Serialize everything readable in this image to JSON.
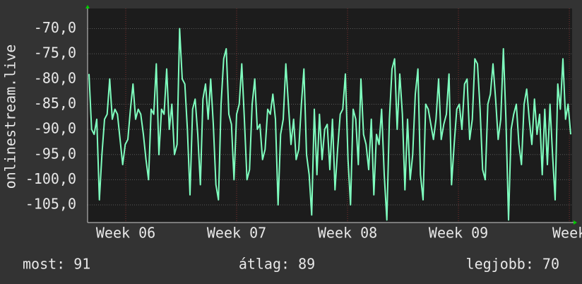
{
  "chart_data": {
    "type": "line",
    "ylabel": "onlinestream.live",
    "ylim": [
      -108.5,
      -66
    ],
    "yticks": [
      {
        "value": -70,
        "label": "-70,0"
      },
      {
        "value": -75,
        "label": "-75,0"
      },
      {
        "value": -80,
        "label": "-80,0"
      },
      {
        "value": -85,
        "label": "-85,0"
      },
      {
        "value": -90,
        "label": "-90,0"
      },
      {
        "value": -95,
        "label": "-95,0"
      },
      {
        "value": -100,
        "label": "-100,0"
      },
      {
        "value": -105,
        "label": "-105,0"
      }
    ],
    "xlim": [
      5.656,
      10.025
    ],
    "xticks": [
      {
        "value": 6,
        "label": "Week 06"
      },
      {
        "value": 7,
        "label": "Week 07"
      },
      {
        "value": 8,
        "label": "Week 08"
      },
      {
        "value": 9,
        "label": "Week 09"
      },
      {
        "value": 10,
        "label": "Week"
      }
    ],
    "grid": true,
    "series": [
      {
        "color": "#7fffbf",
        "values": [
          -79,
          -90,
          -91,
          -88,
          -104,
          -95,
          -88,
          -87,
          -80,
          -88,
          -86,
          -87,
          -92,
          -97,
          -93,
          -92,
          -86,
          -81,
          -88,
          -86,
          -87,
          -91,
          -96,
          -100,
          -86,
          -87,
          -77,
          -95,
          -86,
          -87,
          -78,
          -90,
          -85,
          -95,
          -93,
          -70,
          -80,
          -81,
          -90,
          -103,
          -86,
          -84,
          -91,
          -101,
          -84,
          -81,
          -88,
          -80,
          -89,
          -101,
          -104,
          -85,
          -76,
          -74,
          -87,
          -89,
          -100,
          -87,
          -85,
          -77,
          -88,
          -100,
          -98,
          -85,
          -80,
          -90,
          -89,
          -96,
          -94,
          -86,
          -87,
          -83,
          -88,
          -105,
          -91,
          -88,
          -77,
          -85,
          -93,
          -88,
          -96,
          -94,
          -85,
          -78,
          -95,
          -99,
          -107,
          -86,
          -99,
          -87,
          -96,
          -90,
          -89,
          -98,
          -88,
          -102,
          -94,
          -87,
          -86,
          -79,
          -96,
          -105,
          -86,
          -88,
          -97,
          -80,
          -91,
          -93,
          -98,
          -88,
          -103,
          -91,
          -93,
          -86,
          -99,
          -108,
          -88,
          -78,
          -76,
          -90,
          -79,
          -87,
          -102,
          -88,
          -100,
          -95,
          -83,
          -78,
          -99,
          -104,
          -85,
          -86,
          -89,
          -92,
          -88,
          -80,
          -92,
          -89,
          -87,
          -79,
          -101,
          -93,
          -86,
          -85,
          -90,
          -81,
          -80,
          -92,
          -88,
          -76,
          -77,
          -86,
          -98,
          -100,
          -85,
          -83,
          -77,
          -84,
          -92,
          -88,
          -74,
          -88,
          -108,
          -90,
          -87,
          -85,
          -93,
          -97,
          -85,
          -82,
          -88,
          -93,
          -84,
          -91,
          -87,
          -99,
          -86,
          -97,
          -85,
          -95,
          -104,
          -81,
          -86,
          -76,
          -88,
          -85,
          -91
        ]
      }
    ],
    "legend": [
      "most: 91",
      "átlag: 89",
      "legjobb: 70"
    ]
  }
}
